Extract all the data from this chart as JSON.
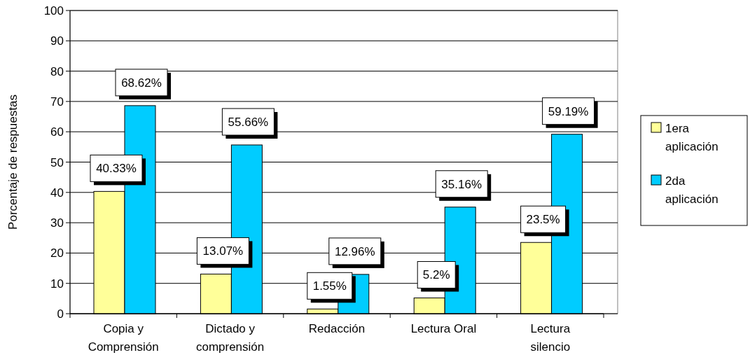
{
  "chart_data": {
    "type": "bar",
    "ylabel": "Porcentaje de respuestas",
    "categories": [
      "Copia y Comprensión",
      "Dictado y comprensión",
      "Redacción",
      "Lectura Oral",
      "Lectura silencio"
    ],
    "series": [
      {
        "name": "1era aplicación",
        "color": "#ffff99",
        "values": [
          40.33,
          13.07,
          1.55,
          5.2,
          23.5
        ],
        "value_labels": [
          "40.33%",
          "13.07%",
          "1.55%",
          "5.2%",
          "23.5%"
        ]
      },
      {
        "name": "2da aplicación",
        "color": "#00ccff",
        "values": [
          68.62,
          55.66,
          12.96,
          35.16,
          59.19
        ],
        "value_labels": [
          "68.62%",
          "55.66%",
          "12.96%",
          "35.16%",
          "59.19%"
        ]
      }
    ],
    "ylim": [
      0,
      100
    ],
    "yticks": [
      0,
      10,
      20,
      30,
      40,
      50,
      60,
      70,
      80,
      90,
      100
    ],
    "grid": "y",
    "legend": "right"
  }
}
